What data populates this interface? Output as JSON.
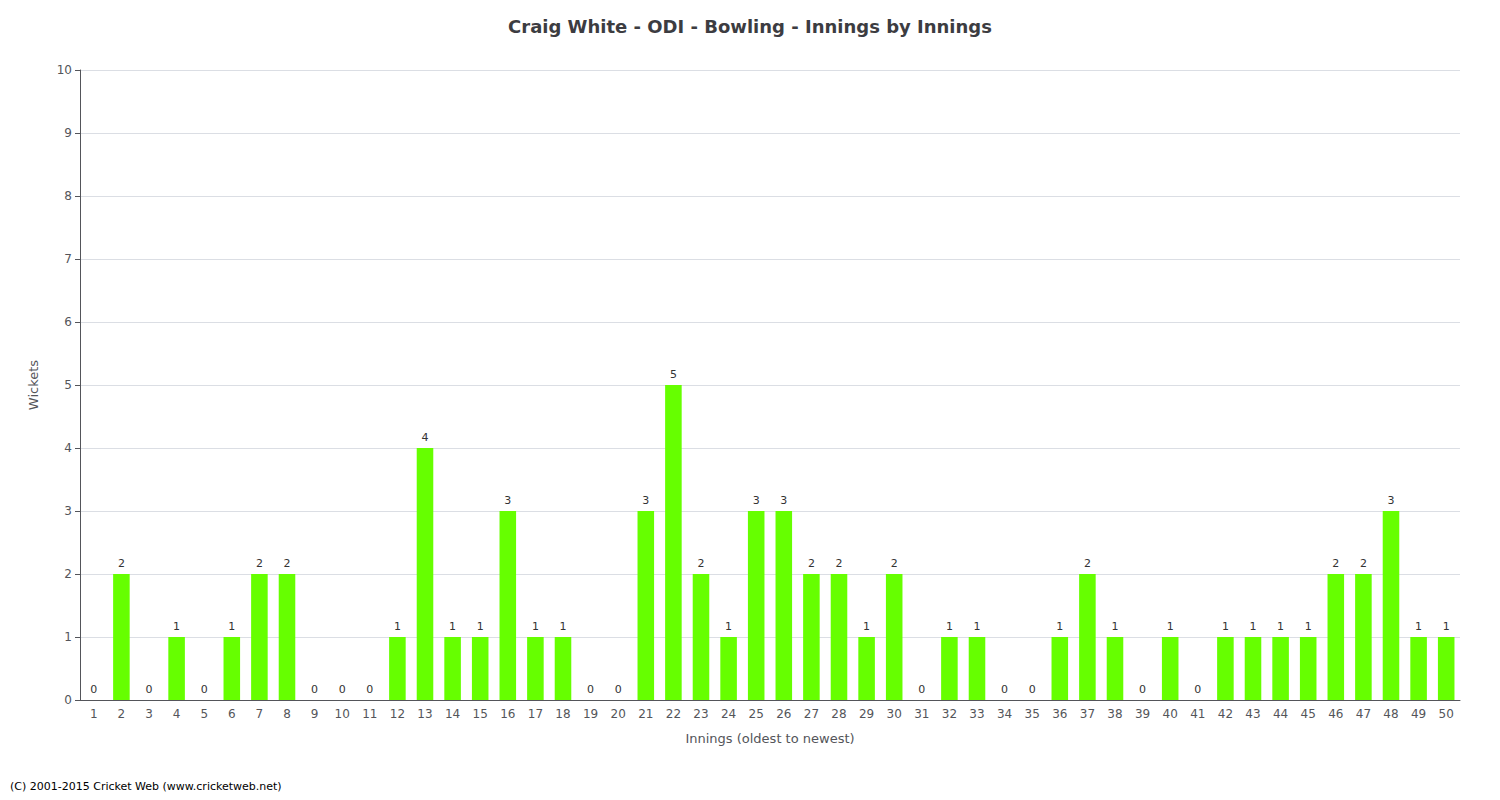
{
  "chart_data": {
    "type": "bar",
    "title": "Craig White - ODI - Bowling - Innings by Innings",
    "xlabel": "Innings (oldest to newest)",
    "ylabel": "Wickets",
    "annotations": [
      "(C) 2001-2015 Cricket Web (www.cricketweb.net)"
    ],
    "categories": [
      "1",
      "2",
      "3",
      "4",
      "5",
      "6",
      "7",
      "8",
      "9",
      "10",
      "11",
      "12",
      "13",
      "14",
      "15",
      "16",
      "17",
      "18",
      "19",
      "20",
      "21",
      "22",
      "23",
      "24",
      "25",
      "26",
      "27",
      "28",
      "29",
      "30",
      "31",
      "32",
      "33",
      "34",
      "35",
      "36",
      "37",
      "38",
      "39",
      "40",
      "41",
      "42",
      "43",
      "44",
      "45",
      "46",
      "47",
      "48",
      "49",
      "50"
    ],
    "values": [
      0,
      2,
      0,
      1,
      0,
      1,
      2,
      2,
      0,
      0,
      0,
      1,
      4,
      1,
      1,
      3,
      1,
      1,
      0,
      0,
      3,
      5,
      2,
      1,
      3,
      3,
      2,
      2,
      1,
      2,
      0,
      1,
      1,
      0,
      0,
      1,
      2,
      1,
      0,
      1,
      0,
      1,
      1,
      1,
      1,
      2,
      2,
      3,
      1,
      1
    ],
    "color": "#66ff00",
    "ylim": [
      0,
      10
    ],
    "yticks": [
      0,
      1,
      2,
      3,
      4,
      5,
      6,
      7,
      8,
      9,
      10
    ],
    "grid": true,
    "data_labels": true
  }
}
